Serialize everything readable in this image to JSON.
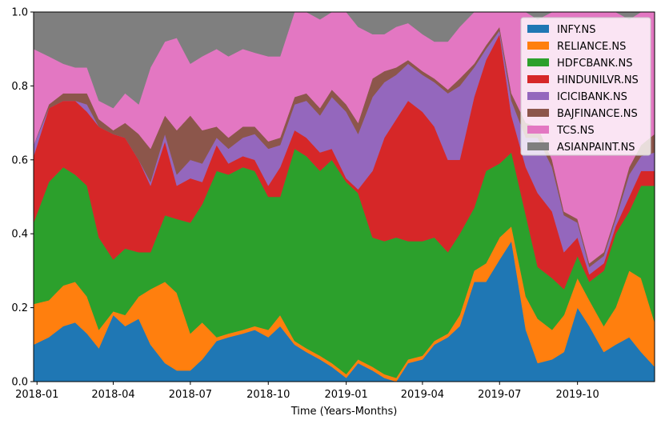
{
  "chart_data": {
    "type": "area",
    "stacked": true,
    "normalized": true,
    "xlabel": "Time (Years-Months)",
    "ylabel": "",
    "ylim": [
      0,
      1
    ],
    "xlim": [
      "2017-12-28",
      "2019-12-31"
    ],
    "yticks": [
      "0.0",
      "0.2",
      "0.4",
      "0.6",
      "0.8",
      "1.0"
    ],
    "xticks": [
      {
        "date": "2018-01-01",
        "label": "2018-01"
      },
      {
        "date": "2018-04-01",
        "label": "2018-04"
      },
      {
        "date": "2018-07-01",
        "label": "2018-07"
      },
      {
        "date": "2018-10-01",
        "label": "2018-10"
      },
      {
        "date": "2019-01-01",
        "label": "2019-01"
      },
      {
        "date": "2019-04-01",
        "label": "2019-04"
      },
      {
        "date": "2019-07-01",
        "label": "2019-07"
      },
      {
        "date": "2019-10-01",
        "label": "2019-10"
      }
    ],
    "legend_position": "top-right",
    "grid": false,
    "x": [
      "2017-12-28",
      "2018-01-15",
      "2018-02-01",
      "2018-02-15",
      "2018-03-01",
      "2018-03-15",
      "2018-04-01",
      "2018-04-15",
      "2018-05-01",
      "2018-05-15",
      "2018-06-01",
      "2018-06-15",
      "2018-07-01",
      "2018-07-15",
      "2018-08-01",
      "2018-08-15",
      "2018-09-01",
      "2018-09-15",
      "2018-10-01",
      "2018-10-15",
      "2018-11-01",
      "2018-11-15",
      "2018-12-01",
      "2018-12-15",
      "2019-01-01",
      "2019-01-15",
      "2019-02-01",
      "2019-02-15",
      "2019-03-01",
      "2019-03-15",
      "2019-04-01",
      "2019-04-15",
      "2019-05-01",
      "2019-05-15",
      "2019-06-01",
      "2019-06-15",
      "2019-07-01",
      "2019-07-15",
      "2019-08-01",
      "2019-08-15",
      "2019-09-01",
      "2019-09-15",
      "2019-10-01",
      "2019-10-15",
      "2019-11-01",
      "2019-11-15",
      "2019-12-01",
      "2019-12-15",
      "2019-12-31"
    ],
    "series": [
      {
        "name": "INFY.NS",
        "color": "#1f77b4",
        "values": [
          0.1,
          0.12,
          0.15,
          0.16,
          0.13,
          0.09,
          0.18,
          0.15,
          0.17,
          0.1,
          0.05,
          0.03,
          0.03,
          0.06,
          0.11,
          0.12,
          0.13,
          0.14,
          0.12,
          0.15,
          0.1,
          0.08,
          0.06,
          0.04,
          0.01,
          0.05,
          0.03,
          0.01,
          0.0,
          0.05,
          0.06,
          0.1,
          0.12,
          0.15,
          0.27,
          0.27,
          0.33,
          0.38,
          0.14,
          0.05,
          0.06,
          0.08,
          0.2,
          0.15,
          0.08,
          0.1,
          0.12,
          0.08,
          0.04
        ]
      },
      {
        "name": "RELIANCE.NS",
        "color": "#ff7f0e",
        "values": [
          0.11,
          0.1,
          0.11,
          0.11,
          0.1,
          0.05,
          0.01,
          0.03,
          0.06,
          0.15,
          0.22,
          0.21,
          0.1,
          0.1,
          0.01,
          0.01,
          0.01,
          0.01,
          0.02,
          0.03,
          0.01,
          0.01,
          0.01,
          0.01,
          0.01,
          0.01,
          0.01,
          0.01,
          0.01,
          0.01,
          0.01,
          0.01,
          0.01,
          0.03,
          0.03,
          0.05,
          0.06,
          0.04,
          0.09,
          0.12,
          0.08,
          0.1,
          0.08,
          0.07,
          0.07,
          0.1,
          0.18,
          0.2,
          0.12
        ]
      },
      {
        "name": "HDFCBANK.NS",
        "color": "#2ca02c",
        "values": [
          0.22,
          0.32,
          0.32,
          0.29,
          0.3,
          0.25,
          0.14,
          0.18,
          0.12,
          0.1,
          0.18,
          0.2,
          0.3,
          0.32,
          0.45,
          0.43,
          0.44,
          0.42,
          0.36,
          0.32,
          0.52,
          0.52,
          0.5,
          0.55,
          0.52,
          0.45,
          0.35,
          0.36,
          0.38,
          0.32,
          0.31,
          0.28,
          0.22,
          0.22,
          0.17,
          0.25,
          0.2,
          0.2,
          0.22,
          0.14,
          0.14,
          0.07,
          0.06,
          0.05,
          0.15,
          0.2,
          0.16,
          0.25,
          0.37
        ]
      },
      {
        "name": "HINDUNILVR.NS",
        "color": "#d62728",
        "values": [
          0.18,
          0.2,
          0.18,
          0.2,
          0.2,
          0.3,
          0.34,
          0.3,
          0.25,
          0.18,
          0.2,
          0.09,
          0.12,
          0.06,
          0.07,
          0.03,
          0.03,
          0.03,
          0.03,
          0.08,
          0.05,
          0.05,
          0.05,
          0.03,
          0.01,
          0.01,
          0.18,
          0.28,
          0.32,
          0.38,
          0.35,
          0.3,
          0.25,
          0.2,
          0.3,
          0.3,
          0.35,
          0.1,
          0.13,
          0.2,
          0.18,
          0.1,
          0.05,
          0.02,
          0.02,
          0.02,
          0.04,
          0.04,
          0.04
        ]
      },
      {
        "name": "ICICIBANK.NS",
        "color": "#9467bd",
        "values": [
          0.03,
          0.0,
          0.0,
          0.0,
          0.02,
          0.0,
          0.0,
          0.0,
          0.0,
          0.01,
          0.02,
          0.03,
          0.05,
          0.05,
          0.02,
          0.04,
          0.05,
          0.07,
          0.1,
          0.06,
          0.07,
          0.1,
          0.1,
          0.14,
          0.18,
          0.15,
          0.2,
          0.15,
          0.12,
          0.1,
          0.1,
          0.12,
          0.18,
          0.2,
          0.08,
          0.03,
          0.01,
          0.04,
          0.08,
          0.15,
          0.12,
          0.1,
          0.04,
          0.02,
          0.02,
          0.02,
          0.06,
          0.04,
          0.05
        ]
      },
      {
        "name": "BAJFINANCE.NS",
        "color": "#8c564b",
        "values": [
          0.0,
          0.01,
          0.02,
          0.02,
          0.03,
          0.02,
          0.01,
          0.04,
          0.07,
          0.09,
          0.05,
          0.12,
          0.12,
          0.09,
          0.03,
          0.03,
          0.03,
          0.02,
          0.02,
          0.02,
          0.02,
          0.02,
          0.02,
          0.02,
          0.02,
          0.03,
          0.05,
          0.03,
          0.02,
          0.01,
          0.01,
          0.01,
          0.01,
          0.02,
          0.01,
          0.01,
          0.01,
          0.02,
          0.04,
          0.03,
          0.02,
          0.01,
          0.01,
          0.01,
          0.01,
          0.01,
          0.02,
          0.03,
          0.05
        ]
      },
      {
        "name": "TCS.NS",
        "color": "#e377c2",
        "values": [
          0.26,
          0.13,
          0.08,
          0.07,
          0.07,
          0.05,
          0.06,
          0.08,
          0.08,
          0.22,
          0.2,
          0.25,
          0.14,
          0.2,
          0.21,
          0.22,
          0.21,
          0.2,
          0.23,
          0.22,
          0.23,
          0.22,
          0.24,
          0.21,
          0.25,
          0.26,
          0.12,
          0.1,
          0.11,
          0.1,
          0.1,
          0.1,
          0.13,
          0.14,
          0.14,
          0.09,
          0.04,
          0.22,
          0.3,
          0.29,
          0.4,
          0.54,
          0.56,
          0.68,
          0.65,
          0.55,
          0.4,
          0.36,
          0.33
        ]
      },
      {
        "name": "ASIANPAINT.NS",
        "color": "#7f7f7f",
        "values": [
          0.1,
          0.12,
          0.14,
          0.15,
          0.15,
          0.24,
          0.26,
          0.22,
          0.25,
          0.15,
          0.08,
          0.07,
          0.14,
          0.12,
          0.1,
          0.12,
          0.1,
          0.11,
          0.12,
          0.12,
          0.0,
          0.0,
          0.02,
          0.0,
          0.0,
          0.04,
          0.06,
          0.06,
          0.04,
          0.03,
          0.06,
          0.08,
          0.08,
          0.04,
          0.0,
          0.0,
          0.0,
          0.0,
          0.0,
          0.02,
          0.0,
          0.0,
          0.0,
          0.0,
          0.0,
          0.0,
          0.02,
          0.0,
          0.0
        ]
      }
    ]
  }
}
